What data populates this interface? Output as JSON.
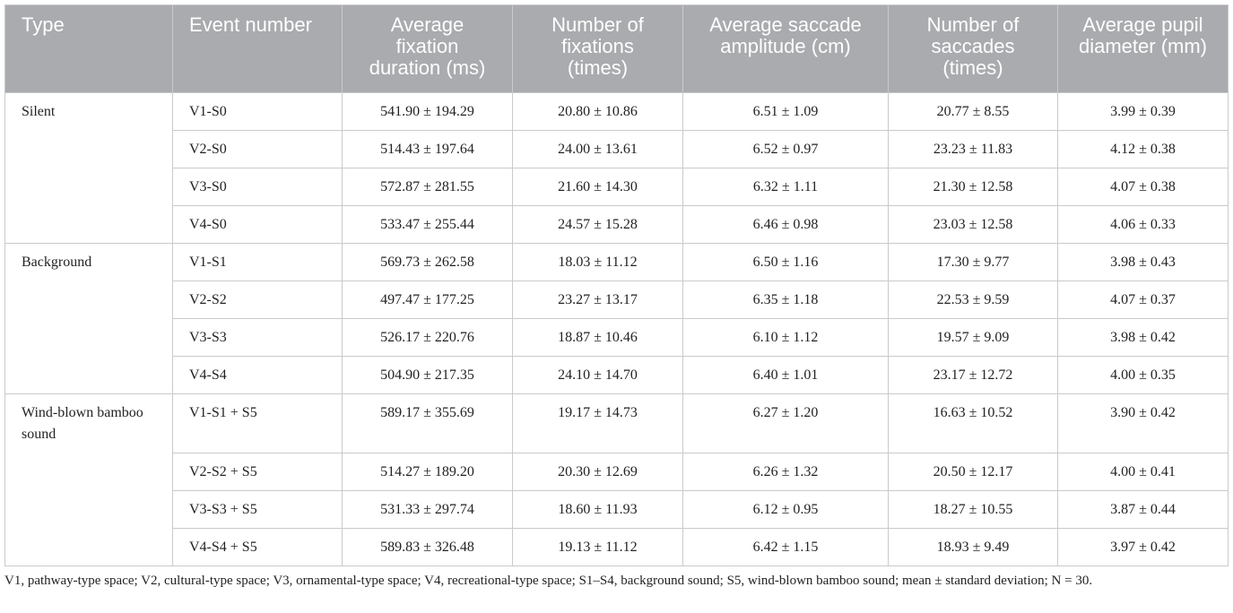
{
  "table": {
    "header": [
      "Type",
      "Event number",
      "Average fixation duration (ms)",
      "Number of fixations (times)",
      "Average saccade amplitude (cm)",
      "Number of saccades (times)",
      "Average pupil diameter (mm)"
    ],
    "groups": [
      {
        "type": "Silent",
        "rows": [
          [
            "V1-S0",
            "541.90 ± 194.29",
            "20.80 ± 10.86",
            "6.51 ± 1.09",
            "20.77 ± 8.55",
            "3.99 ± 0.39"
          ],
          [
            "V2-S0",
            "514.43 ± 197.64",
            "24.00 ± 13.61",
            "6.52 ± 0.97",
            "23.23 ± 11.83",
            "4.12 ± 0.38"
          ],
          [
            "V3-S0",
            "572.87 ± 281.55",
            "21.60 ± 14.30",
            "6.32 ± 1.11",
            "21.30 ± 12.58",
            "4.07 ± 0.38"
          ],
          [
            "V4-S0",
            "533.47 ± 255.44",
            "24.57 ± 15.28",
            "6.46 ± 0.98",
            "23.03 ± 12.58",
            "4.06 ± 0.33"
          ]
        ]
      },
      {
        "type": "Background",
        "rows": [
          [
            "V1-S1",
            "569.73 ± 262.58",
            "18.03 ± 11.12",
            "6.50 ± 1.16",
            "17.30 ± 9.77",
            "3.98 ± 0.43"
          ],
          [
            "V2-S2",
            "497.47 ± 177.25",
            "23.27 ± 13.17",
            "6.35 ± 1.18",
            "22.53 ± 9.59",
            "4.07 ± 0.37"
          ],
          [
            "V3-S3",
            "526.17 ± 220.76",
            "18.87 ± 10.46",
            "6.10 ± 1.12",
            "19.57 ± 9.09",
            "3.98 ± 0.42"
          ],
          [
            "V4-S4",
            "504.90 ± 217.35",
            "24.10 ± 14.70",
            "6.40 ± 1.01",
            "23.17 ± 12.72",
            "4.00 ± 0.35"
          ]
        ]
      },
      {
        "type": "Wind-blown bamboo sound",
        "rows": [
          [
            "V1-S1 + S5",
            "589.17 ± 355.69",
            "19.17 ± 14.73",
            "6.27 ± 1.20",
            "16.63 ± 10.52",
            "3.90 ± 0.42"
          ],
          [
            "V2-S2 + S5",
            "514.27 ± 189.20",
            "20.30 ± 12.69",
            "6.26 ± 1.32",
            "20.50 ± 12.17",
            "4.00 ± 0.41"
          ],
          [
            "V3-S3 + S5",
            "531.33 ± 297.74",
            "18.60 ± 11.93",
            "6.12 ± 0.95",
            "18.27 ± 10.55",
            "3.87 ± 0.44"
          ],
          [
            "V4-S4 + S5",
            "589.83 ± 326.48",
            "19.13 ± 11.12",
            "6.42 ± 1.15",
            "18.93 ± 9.49",
            "3.97 ± 0.42"
          ]
        ]
      }
    ],
    "footnote": "V1, pathway-type space; V2, cultural-type space; V3, ornamental-type space; V4, recreational-type space; S1–S4, background sound; S5, wind-blown bamboo sound; mean ± standard deviation; N = 30."
  }
}
